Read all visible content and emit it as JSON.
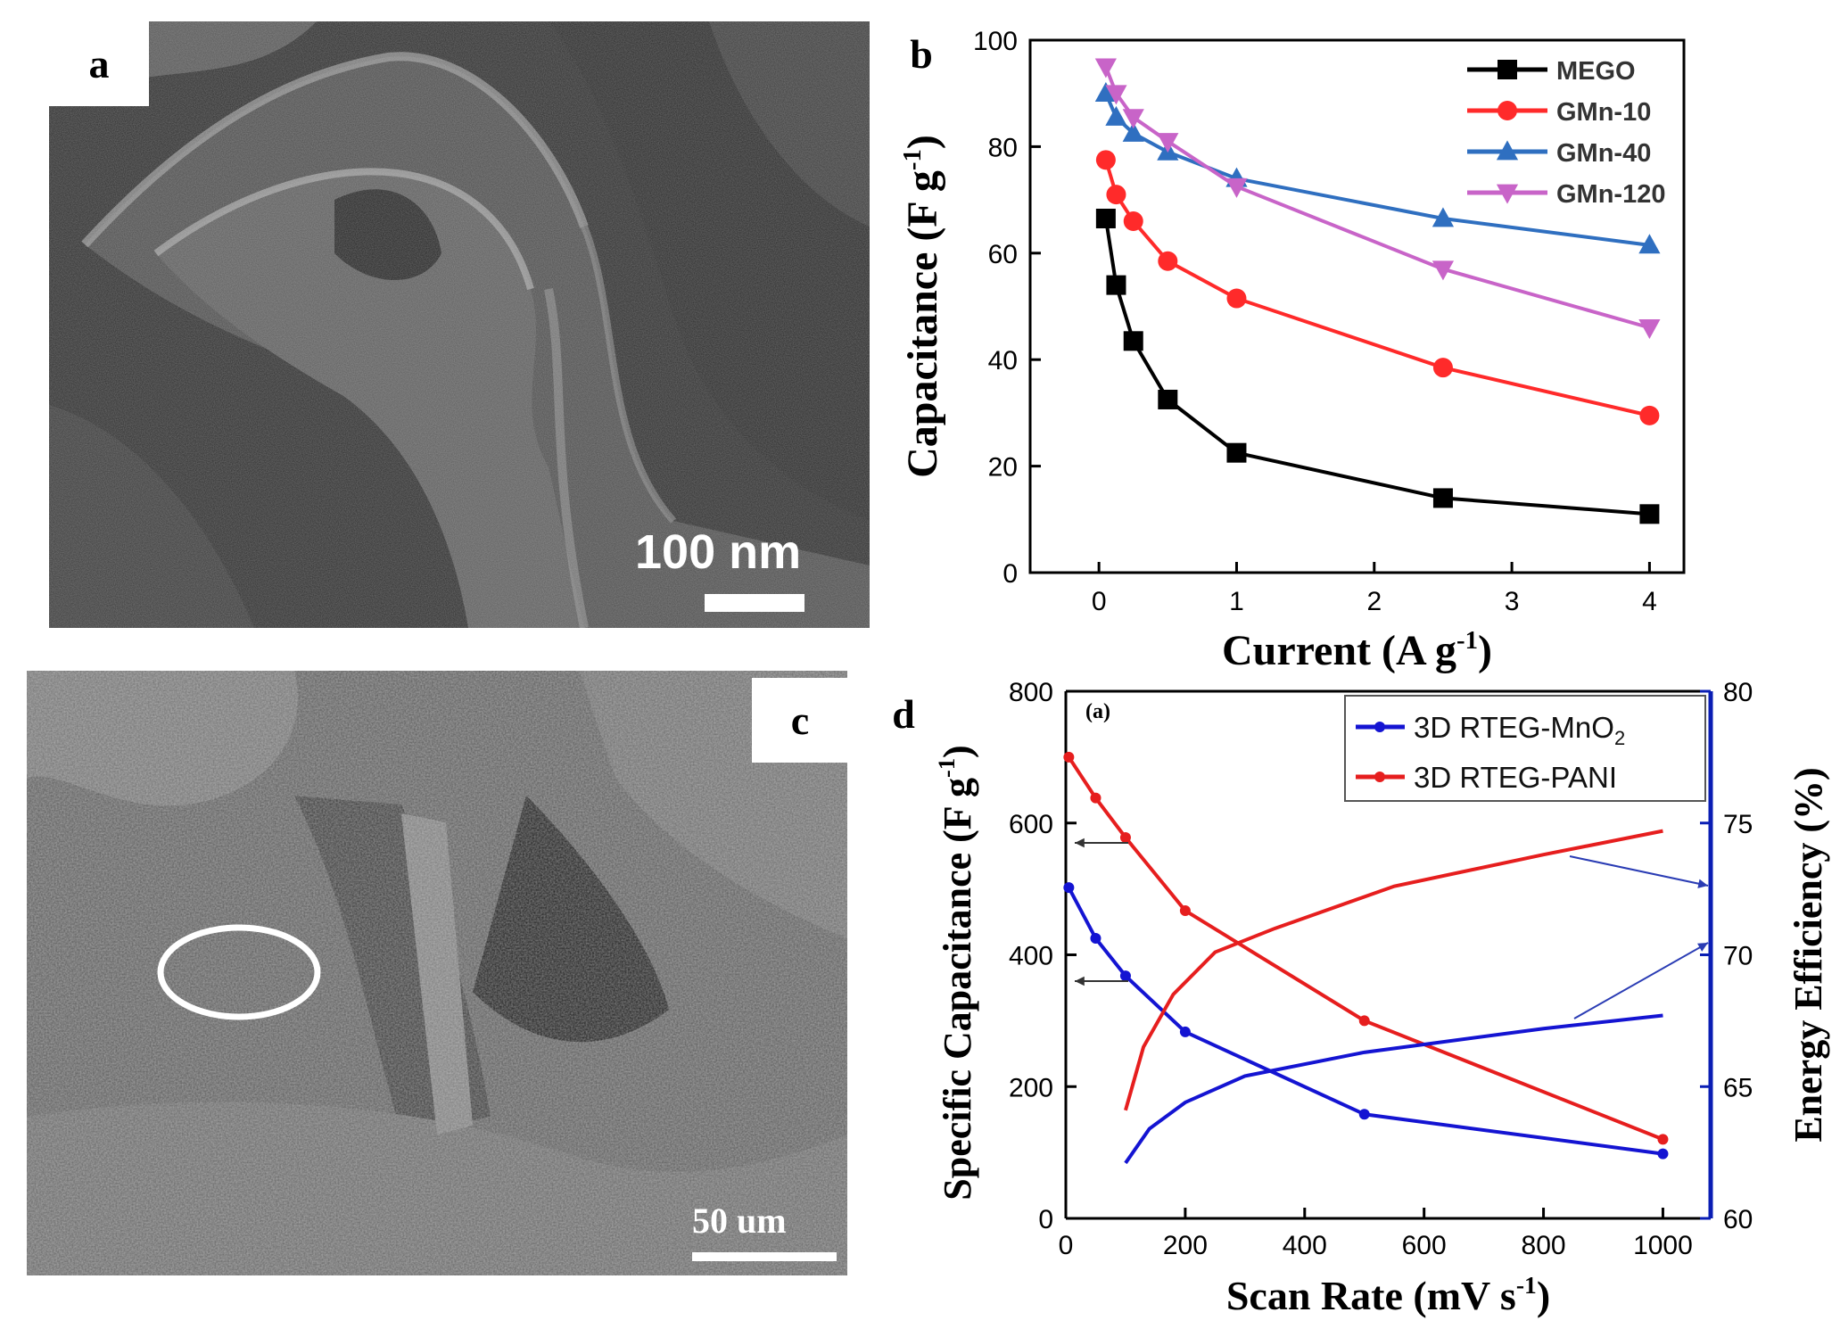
{
  "panels": {
    "a": {
      "label": "a",
      "scale_text": "100 nm"
    },
    "b": {
      "label": "b"
    },
    "c": {
      "label": "c",
      "scale_text": "50 um"
    },
    "d": {
      "label": "d"
    }
  },
  "colors": {
    "black": "#000000",
    "red": "#ff2a2a",
    "blue": "#2f6fc0",
    "magenta": "#c864c8",
    "dblue": "#1414d2",
    "dred": "#e61e1e",
    "axis_right": "#0a1eb4"
  },
  "chart_data": [
    {
      "id": "b",
      "type": "line",
      "xlabel": "Current (A g",
      "xlabel_sup": "-1",
      "xlabel_end": ")",
      "ylabel": "Capacitance (F g",
      "ylabel_sup": "-1",
      "ylabel_end": ")",
      "xlim": [
        -0.5,
        4.25
      ],
      "ylim": [
        0,
        100
      ],
      "xticks": [
        0,
        1,
        2,
        3,
        4
      ],
      "yticks": [
        0,
        20,
        40,
        60,
        80,
        100
      ],
      "legend_position": "top-right",
      "series": [
        {
          "name": "MEGO",
          "marker": "square",
          "color": "#000000",
          "x": [
            0.05,
            0.125,
            0.25,
            0.5,
            1.0,
            2.5,
            4.0
          ],
          "y": [
            66.5,
            54,
            43.5,
            32.5,
            22.5,
            14,
            11
          ]
        },
        {
          "name": "GMn-10",
          "marker": "circle",
          "color": "#ff2a2a",
          "x": [
            0.05,
            0.125,
            0.25,
            0.5,
            1.0,
            2.5,
            4.0
          ],
          "y": [
            77.5,
            71,
            66,
            58.5,
            51.5,
            38.5,
            29.5
          ]
        },
        {
          "name": "GMn-40",
          "marker": "triangle-up",
          "color": "#2f6fc0",
          "x": [
            0.05,
            0.125,
            0.25,
            0.5,
            1.0,
            2.5,
            4.0
          ],
          "y": [
            90,
            85.5,
            82.5,
            79,
            74,
            66.5,
            61.5
          ]
        },
        {
          "name": "GMn-120",
          "marker": "triangle-down",
          "color": "#c864c8",
          "x": [
            0.05,
            0.125,
            0.25,
            0.5,
            1.0,
            2.5,
            4.0
          ],
          "y": [
            95,
            90,
            85.5,
            81,
            72.5,
            57,
            46
          ]
        }
      ]
    },
    {
      "id": "d",
      "type": "line",
      "annotation": "(a)",
      "xlabel": "Scan Rate (mV s",
      "xlabel_sup": "-1",
      "xlabel_end": ")",
      "ylabel": "Specific Capacitance (F g",
      "ylabel_sup": "-1",
      "ylabel_end": ")",
      "y2label": "Energy Efficiency (%)",
      "xlim": [
        0,
        1080
      ],
      "ylim": [
        0,
        800
      ],
      "y2lim": [
        60,
        80
      ],
      "xticks": [
        0,
        200,
        400,
        600,
        800,
        1000
      ],
      "yticks": [
        0,
        200,
        400,
        600,
        800
      ],
      "y2ticks": [
        60,
        65,
        70,
        75,
        80
      ],
      "legend_position": "top-right",
      "legend": [
        {
          "name": "3D RTEG-MnO",
          "sub": "2",
          "color": "#1414d2"
        },
        {
          "name": "3D RTEG-PANI",
          "sub": "",
          "color": "#e61e1e"
        }
      ],
      "series": [
        {
          "name": "3D RTEG-MnO2 capacitance",
          "axis": "left",
          "color": "#1414d2",
          "markers": true,
          "x": [
            5,
            50,
            100,
            200,
            500,
            1000
          ],
          "y": [
            502,
            425,
            368,
            283,
            158,
            98
          ]
        },
        {
          "name": "3D RTEG-PANI capacitance",
          "axis": "left",
          "color": "#e61e1e",
          "markers": true,
          "x": [
            5,
            50,
            100,
            200,
            500,
            1000
          ],
          "y": [
            700,
            638,
            578,
            467,
            300,
            120
          ]
        },
        {
          "name": "3D RTEG-PANI efficiency",
          "axis": "right",
          "color": "#e61e1e",
          "markers": false,
          "x": [
            100,
            130,
            180,
            250,
            350,
            550,
            800,
            1000
          ],
          "y": [
            64.1,
            66.5,
            68.5,
            70.1,
            71.0,
            72.6,
            73.8,
            74.7
          ]
        },
        {
          "name": "3D RTEG-MnO2 efficiency",
          "axis": "right",
          "color": "#1414d2",
          "markers": false,
          "x": [
            100,
            140,
            200,
            300,
            500,
            800,
            1000
          ],
          "y": [
            62.1,
            63.4,
            64.4,
            65.4,
            66.3,
            67.2,
            67.7
          ]
        }
      ]
    }
  ]
}
